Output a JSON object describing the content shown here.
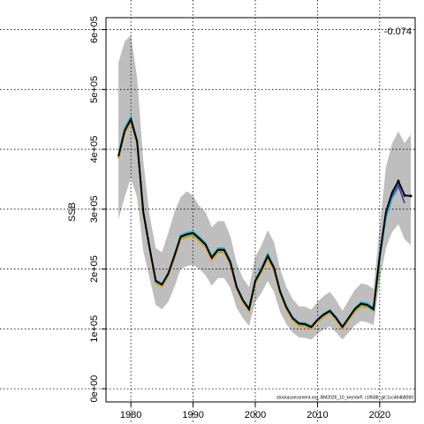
{
  "chart_data": {
    "type": "line",
    "ylabel": "SSB",
    "annotation": "-0.074",
    "footnote": "stockassessment.org, BM2026_10_keyVarF, r19588, git:1cc464b8069",
    "x": [
      1978,
      1979,
      1980,
      1981,
      1982,
      1983,
      1984,
      1985,
      1986,
      1987,
      1988,
      1989,
      1990,
      1991,
      1992,
      1993,
      1994,
      1995,
      1996,
      1997,
      1998,
      1999,
      2000,
      2001,
      2002,
      2003,
      2004,
      2005,
      2006,
      2007,
      2008,
      2009,
      2010,
      2011,
      2012,
      2013,
      2014,
      2015,
      2016,
      2017,
      2018,
      2019,
      2020,
      2021,
      2022,
      2023,
      2024,
      2025
    ],
    "band": {
      "color": "#bebebe",
      "upper": [
        545000,
        580000,
        591000,
        520000,
        380000,
        290000,
        235000,
        228000,
        260000,
        295000,
        320000,
        330000,
        322000,
        305000,
        295000,
        270000,
        280000,
        280000,
        255000,
        210000,
        185000,
        170000,
        220000,
        240000,
        265000,
        245000,
        200000,
        170000,
        150000,
        138000,
        137000,
        132000,
        145000,
        155000,
        162000,
        148000,
        130000,
        148000,
        165000,
        176000,
        174000,
        167000,
        270000,
        370000,
        410000,
        430000,
        410000,
        425000
      ],
      "lower": [
        283000,
        320000,
        352000,
        320000,
        230000,
        185000,
        140000,
        133000,
        145000,
        170000,
        200000,
        205000,
        207000,
        200000,
        190000,
        172000,
        185000,
        185000,
        168000,
        135000,
        118000,
        105000,
        145000,
        160000,
        180000,
        162000,
        128000,
        108000,
        94000,
        86000,
        85000,
        82000,
        92000,
        99000,
        104000,
        94000,
        82000,
        94000,
        106000,
        113000,
        111000,
        106000,
        180000,
        235000,
        262000,
        275000,
        250000,
        240000
      ]
    },
    "series": [
      {
        "color": "#000000",
        "values": [
          388000,
          431000,
          450000,
          413000,
          295000,
          236000,
          180000,
          174000,
          192000,
          222000,
          254000,
          258000,
          260000,
          251000,
          241000,
          219000,
          232000,
          232000,
          211000,
          170000,
          148000,
          133000,
          180000,
          199000,
          222000,
          202000,
          162000,
          136000,
          118000,
          109000,
          108000,
          103000,
          115000,
          124000,
          130000,
          118000,
          103000,
          118000,
          133000,
          142000,
          140000,
          133000,
          222000,
          295000,
          328000,
          347000,
          323000,
          322000
        ]
      },
      {
        "color": "#e0a030",
        "values": [
          384000,
          426000,
          445000,
          408000,
          290000,
          231000,
          176000,
          170000,
          188000,
          217000,
          249000,
          253000,
          255000,
          246000,
          236000,
          214000,
          227000,
          227000,
          206000,
          166000,
          144000,
          129000,
          175000,
          194000,
          216000,
          197000,
          158000,
          132000,
          114000,
          105000,
          104000,
          99000,
          111000,
          120000,
          126000,
          114000,
          99000,
          114000,
          128000,
          137000,
          135000,
          null,
          null,
          null,
          null,
          null,
          null,
          null
        ]
      },
      {
        "color": "#6ab04c",
        "values": [
          386000,
          428000,
          447000,
          410000,
          292000,
          233000,
          178000,
          172000,
          190000,
          219000,
          251000,
          255000,
          257000,
          248000,
          238000,
          216000,
          229000,
          229000,
          208000,
          168000,
          146000,
          131000,
          177000,
          196000,
          219000,
          199000,
          160000,
          134000,
          116000,
          107000,
          106000,
          101000,
          113000,
          122000,
          128000,
          116000,
          101000,
          116000,
          131000,
          139000,
          137000,
          130000,
          205000,
          null,
          null,
          null,
          null,
          null
        ]
      },
      {
        "color": "#22b5d9",
        "values": [
          392000,
          436000,
          455000,
          417000,
          298000,
          238000,
          182000,
          176000,
          194000,
          225000,
          257000,
          261000,
          263000,
          254000,
          244000,
          222000,
          235000,
          235000,
          214000,
          172000,
          150000,
          135000,
          183000,
          203000,
          226000,
          205000,
          164000,
          138000,
          120000,
          111000,
          110000,
          105000,
          117000,
          126000,
          132000,
          120000,
          105000,
          120000,
          135000,
          145000,
          143000,
          136000,
          215000,
          285000,
          318000,
          335000,
          null,
          null
        ]
      },
      {
        "color": "#4b2ea0",
        "values": [
          389000,
          432000,
          451000,
          414000,
          296000,
          237000,
          181000,
          175000,
          193000,
          223000,
          255000,
          259000,
          261000,
          252000,
          242000,
          220000,
          233000,
          233000,
          212000,
          171000,
          149000,
          134000,
          181000,
          200000,
          223000,
          203000,
          163000,
          137000,
          119000,
          110000,
          109000,
          104000,
          116000,
          125000,
          131000,
          119000,
          104000,
          119000,
          134000,
          143000,
          141000,
          134000,
          218000,
          292000,
          322000,
          340000,
          310000,
          null
        ]
      }
    ],
    "xlim": [
      1976,
      2025.7
    ],
    "ylim": [
      -22000,
      620000
    ],
    "xticks": [
      1980,
      1990,
      2000,
      2010,
      2020
    ],
    "yticks": [
      {
        "value": 0,
        "label": "0e+00"
      },
      {
        "value": 100000,
        "label": "1e+05"
      },
      {
        "value": 200000,
        "label": "2e+05"
      },
      {
        "value": 300000,
        "label": "3e+05"
      },
      {
        "value": 400000,
        "label": "4e+05"
      },
      {
        "value": 500000,
        "label": "5e+05"
      },
      {
        "value": 600000,
        "label": "6e+05"
      }
    ],
    "grid": true
  }
}
